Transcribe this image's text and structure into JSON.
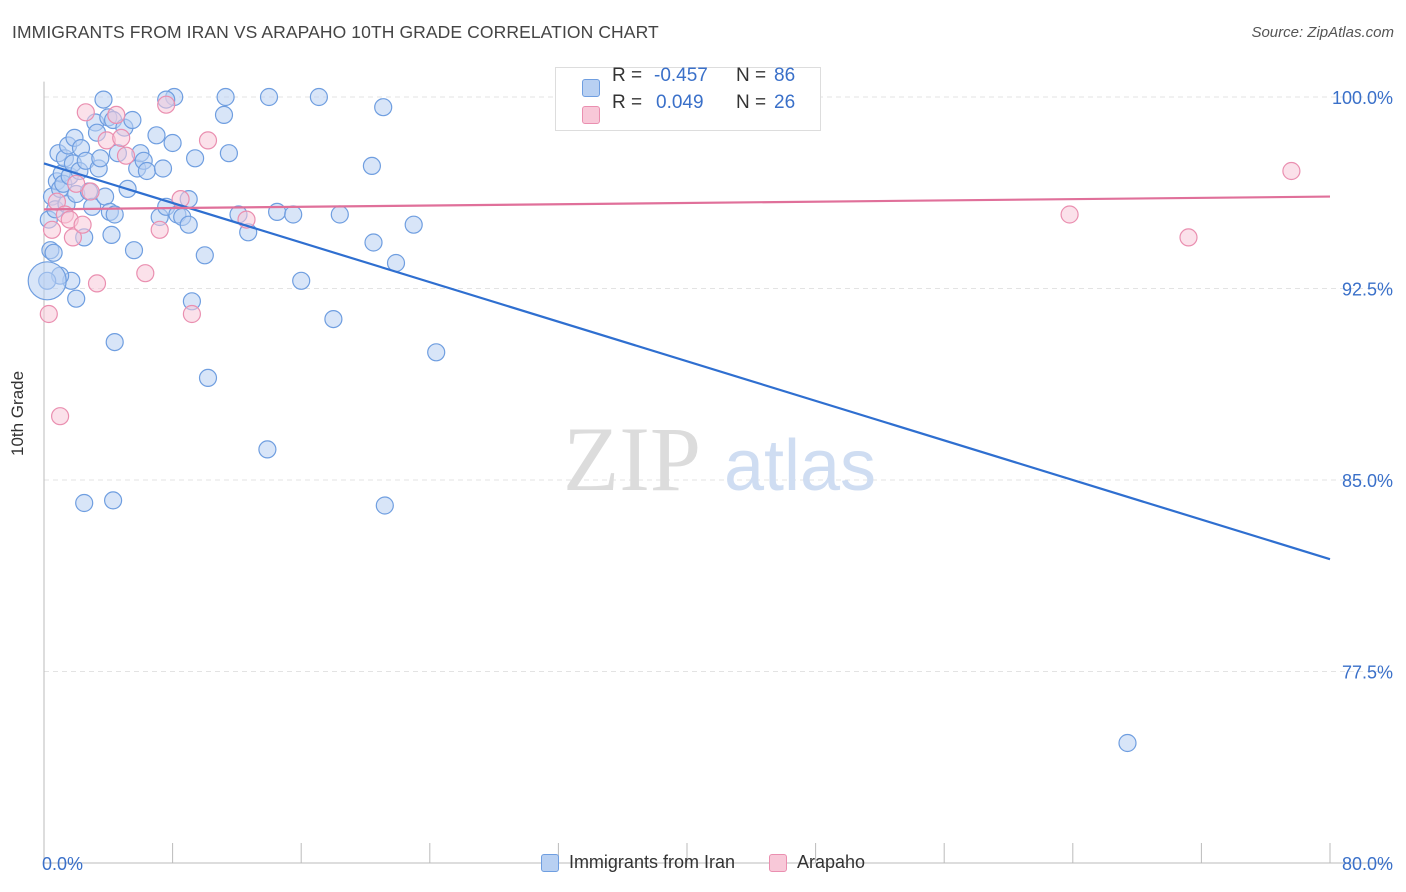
{
  "title": "IMMIGRANTS FROM IRAN VS ARAPAHO 10TH GRADE CORRELATION CHART",
  "source": "Source: ZipAtlas.com",
  "watermark": {
    "zip": "ZIP",
    "atlas": "atlas"
  },
  "colors": {
    "iran_fill": "#b8d0f2",
    "iran_stroke": "#6f9ee0",
    "iran_line": "#2f6fd0",
    "arapaho_fill": "#f8c8d8",
    "arapaho_stroke": "#ea8fb0",
    "arapaho_line": "#e0709a",
    "axis_text": "#3a70c9",
    "grid": "#e3e3e3"
  },
  "stats": {
    "iran": {
      "r_label": "R =",
      "r_value": "-0.457",
      "n_label": "N =",
      "n_value": "86"
    },
    "arapaho": {
      "r_label": "R =",
      "r_value": "0.049",
      "n_label": "N =",
      "n_value": "26"
    }
  },
  "legend": {
    "iran": "Immigrants from Iran",
    "arapaho": "Arapaho"
  },
  "chart_data": {
    "type": "scatter",
    "xlabel": "",
    "ylabel": "10th Grade",
    "xlim": [
      0,
      80
    ],
    "ylim": [
      70,
      100.6
    ],
    "x_tick_labels": [
      {
        "value": 0,
        "label": "0.0%"
      },
      {
        "value": 80,
        "label": "80.0%"
      }
    ],
    "y_tick_labels": [
      {
        "value": 100,
        "label": "100.0%"
      },
      {
        "value": 92.5,
        "label": "92.5%"
      },
      {
        "value": 85,
        "label": "85.0%"
      },
      {
        "value": 77.5,
        "label": "77.5%"
      }
    ],
    "grid": true,
    "legend_position": "bottom",
    "series": [
      {
        "name": "Immigrants from Iran",
        "r": -0.457,
        "n": 86,
        "trend": {
          "x": [
            0,
            80
          ],
          "y": [
            97.4,
            81.9
          ]
        },
        "points": [
          [
            0.3,
            95.2
          ],
          [
            0.4,
            94.0
          ],
          [
            0.5,
            96.1
          ],
          [
            0.6,
            93.9
          ],
          [
            0.7,
            95.6
          ],
          [
            0.8,
            96.7
          ],
          [
            0.9,
            97.8
          ],
          [
            1.0,
            96.4
          ],
          [
            1.1,
            97.0
          ],
          [
            1.2,
            96.6
          ],
          [
            1.3,
            97.6
          ],
          [
            1.4,
            95.8
          ],
          [
            1.5,
            98.1
          ],
          [
            1.6,
            96.9
          ],
          [
            1.7,
            92.8
          ],
          [
            1.8,
            97.4
          ],
          [
            1.9,
            98.4
          ],
          [
            2.0,
            96.2
          ],
          [
            2.2,
            97.1
          ],
          [
            2.3,
            98.0
          ],
          [
            2.5,
            94.5
          ],
          [
            2.6,
            97.5
          ],
          [
            2.8,
            96.3
          ],
          [
            3.0,
            95.7
          ],
          [
            3.2,
            99.0
          ],
          [
            3.3,
            98.6
          ],
          [
            3.4,
            97.2
          ],
          [
            3.5,
            97.6
          ],
          [
            3.7,
            99.9
          ],
          [
            3.8,
            96.1
          ],
          [
            4.0,
            99.2
          ],
          [
            4.1,
            95.5
          ],
          [
            4.2,
            94.6
          ],
          [
            4.3,
            99.1
          ],
          [
            4.4,
            90.4
          ],
          [
            4.6,
            97.8
          ],
          [
            5.0,
            98.8
          ],
          [
            5.2,
            96.4
          ],
          [
            5.5,
            99.1
          ],
          [
            5.6,
            94.0
          ],
          [
            5.8,
            97.2
          ],
          [
            6.0,
            97.8
          ],
          [
            6.2,
            97.5
          ],
          [
            6.4,
            97.1
          ],
          [
            7.0,
            98.5
          ],
          [
            7.2,
            95.3
          ],
          [
            7.4,
            97.2
          ],
          [
            7.6,
            95.7
          ],
          [
            8.0,
            98.2
          ],
          [
            8.3,
            95.4
          ],
          [
            8.6,
            95.3
          ],
          [
            9.0,
            95.0
          ],
          [
            9.2,
            92.0
          ],
          [
            9.4,
            97.6
          ],
          [
            10.0,
            93.8
          ],
          [
            10.2,
            89.0
          ],
          [
            11.2,
            99.3
          ],
          [
            11.5,
            97.8
          ],
          [
            12.1,
            95.4
          ],
          [
            12.7,
            94.7
          ],
          [
            13.9,
            86.2
          ],
          [
            14.5,
            95.5
          ],
          [
            1.0,
            93.0
          ],
          [
            0.2,
            92.8
          ],
          [
            2.5,
            84.1
          ],
          [
            4.3,
            84.2
          ],
          [
            8.1,
            100.0
          ],
          [
            11.3,
            100.0
          ],
          [
            14.0,
            100.0
          ],
          [
            17.1,
            100.0
          ],
          [
            18.0,
            91.3
          ],
          [
            20.4,
            97.3
          ],
          [
            21.1,
            99.6
          ],
          [
            21.9,
            93.5
          ],
          [
            23.0,
            95.0
          ],
          [
            24.4,
            90.0
          ],
          [
            20.5,
            94.3
          ],
          [
            21.2,
            84.0
          ],
          [
            15.5,
            95.4
          ],
          [
            16.0,
            92.8
          ],
          [
            18.4,
            95.4
          ],
          [
            9.0,
            96.0
          ],
          [
            7.6,
            99.9
          ],
          [
            2.0,
            92.1
          ],
          [
            67.4,
            74.7
          ],
          [
            4.4,
            95.4
          ]
        ]
      },
      {
        "name": "Arapaho",
        "r": 0.049,
        "n": 26,
        "trend": {
          "x": [
            0,
            80
          ],
          "y": [
            95.6,
            96.1
          ]
        },
        "points": [
          [
            0.3,
            91.5
          ],
          [
            0.5,
            94.8
          ],
          [
            0.8,
            95.9
          ],
          [
            1.0,
            87.5
          ],
          [
            1.3,
            95.4
          ],
          [
            1.6,
            95.2
          ],
          [
            1.8,
            94.5
          ],
          [
            2.0,
            96.6
          ],
          [
            2.4,
            95.0
          ],
          [
            2.6,
            99.4
          ],
          [
            2.9,
            96.3
          ],
          [
            3.3,
            92.7
          ],
          [
            3.9,
            98.3
          ],
          [
            4.5,
            99.3
          ],
          [
            4.8,
            98.4
          ],
          [
            5.1,
            97.7
          ],
          [
            6.3,
            93.1
          ],
          [
            7.2,
            94.8
          ],
          [
            7.6,
            99.7
          ],
          [
            8.5,
            96.0
          ],
          [
            9.2,
            91.5
          ],
          [
            10.2,
            98.3
          ],
          [
            12.6,
            95.2
          ],
          [
            63.8,
            95.4
          ],
          [
            71.2,
            94.5
          ],
          [
            77.6,
            97.1
          ]
        ]
      }
    ]
  }
}
